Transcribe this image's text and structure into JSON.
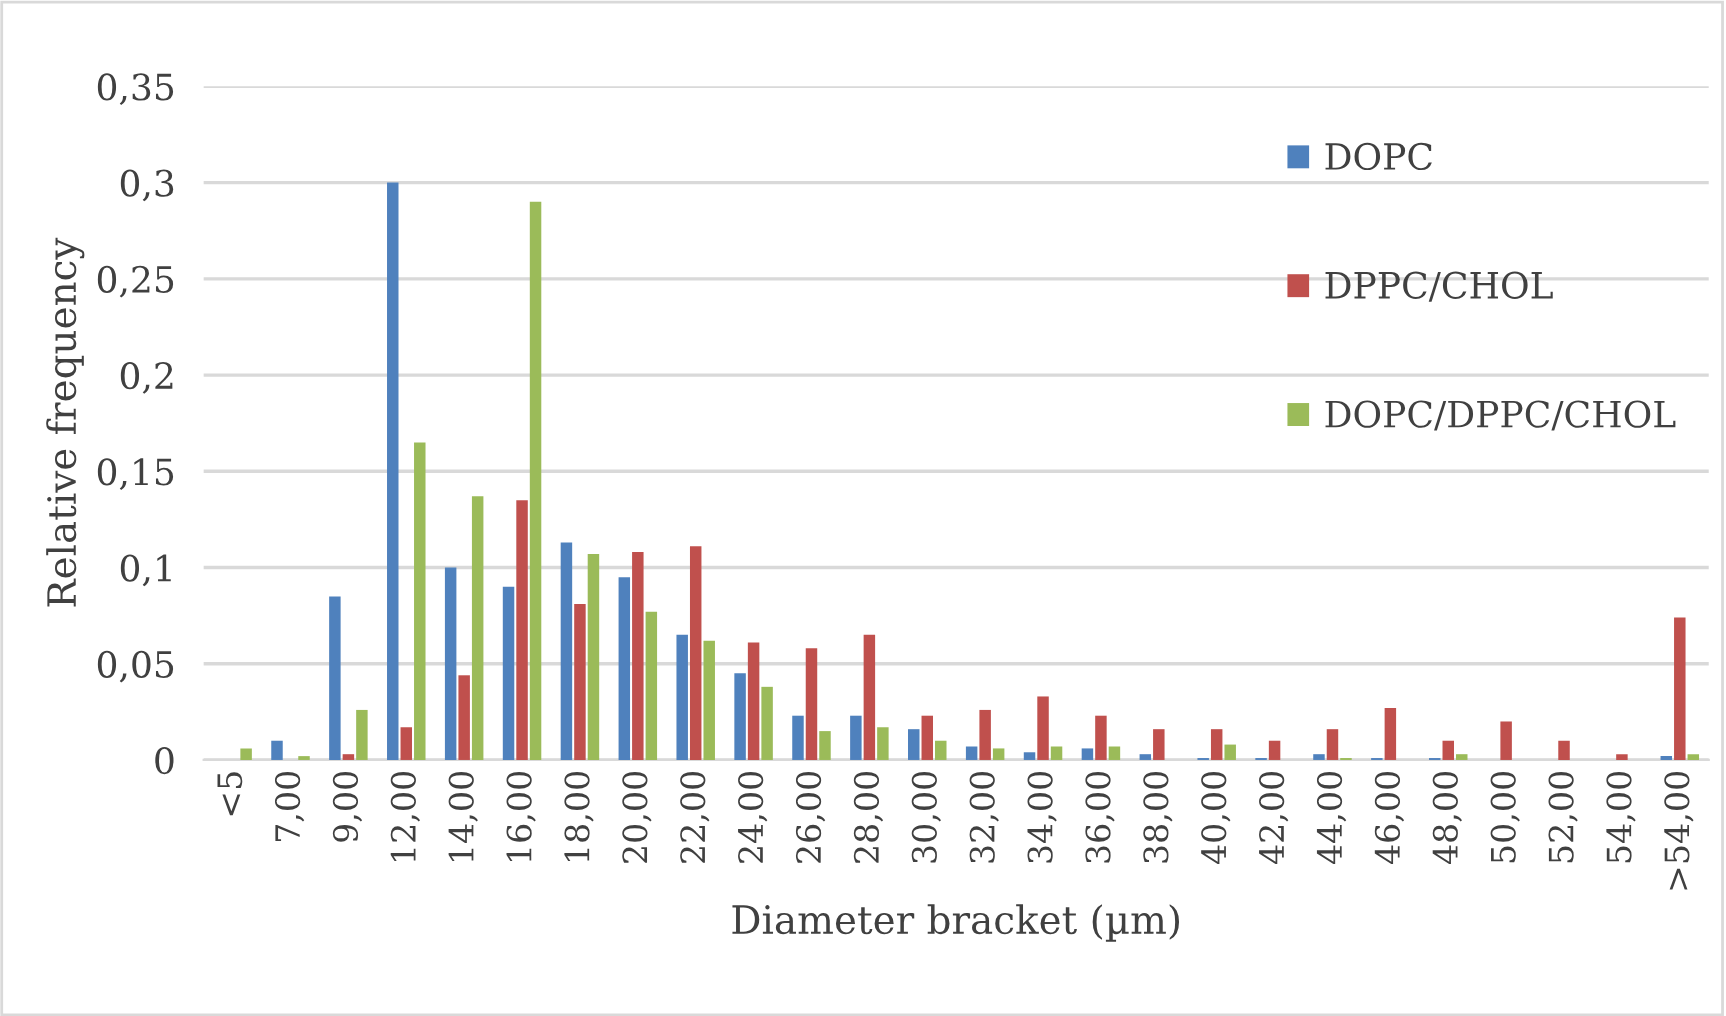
{
  "chart_data": {
    "type": "bar",
    "xlabel": "Diameter bracket (µm)",
    "ylabel": "Relative frequency",
    "categories": [
      "<5",
      "7,00",
      "9,00",
      "12,00",
      "14,00",
      "16,00",
      "18,00",
      "20,00",
      "22,00",
      "24,00",
      "26,00",
      "28,00",
      "30,00",
      "32,00",
      "34,00",
      "36,00",
      "38,00",
      "40,00",
      "42,00",
      "44,00",
      "46,00",
      "48,00",
      "50,00",
      "52,00",
      "54,00",
      ">54,00"
    ],
    "series": [
      {
        "name": "DOPC",
        "color": "#4f81bd",
        "values": [
          0,
          0.01,
          0.085,
          0.3,
          0.1,
          0.09,
          0.113,
          0.095,
          0.065,
          0.045,
          0.023,
          0.023,
          0.016,
          0.007,
          0.004,
          0.006,
          0.003,
          0.001,
          0.001,
          0.003,
          0.001,
          0.001,
          0,
          0,
          0,
          0.002
        ]
      },
      {
        "name": "DPPC/CHOL",
        "color": "#c0504d",
        "values": [
          0,
          0,
          0.003,
          0.017,
          0.044,
          0.135,
          0.081,
          0.108,
          0.111,
          0.061,
          0.058,
          0.065,
          0.023,
          0.026,
          0.033,
          0.023,
          0.016,
          0.016,
          0.01,
          0.016,
          0.027,
          0.01,
          0.02,
          0.01,
          0.003,
          0.074
        ]
      },
      {
        "name": "DOPC/DPPC/CHOL",
        "color": "#9bbb59",
        "values": [
          0.006,
          0.002,
          0.026,
          0.165,
          0.137,
          0.29,
          0.107,
          0.077,
          0.062,
          0.038,
          0.015,
          0.017,
          0.01,
          0.006,
          0.007,
          0.007,
          0,
          0.008,
          0,
          0.001,
          0,
          0.003,
          0,
          0,
          0,
          0.003
        ]
      }
    ],
    "ylim": [
      0,
      0.35
    ],
    "yticks": [
      {
        "value": 0,
        "label": "0"
      },
      {
        "value": 0.05,
        "label": "0,05"
      },
      {
        "value": 0.1,
        "label": "0,1"
      },
      {
        "value": 0.15,
        "label": "0,15"
      },
      {
        "value": 0.2,
        "label": "0,2"
      },
      {
        "value": 0.25,
        "label": "0,25"
      },
      {
        "value": 0.3,
        "label": "0,3"
      },
      {
        "value": 0.35,
        "label": "0,35"
      }
    ],
    "grid": "y",
    "legend": "right"
  }
}
